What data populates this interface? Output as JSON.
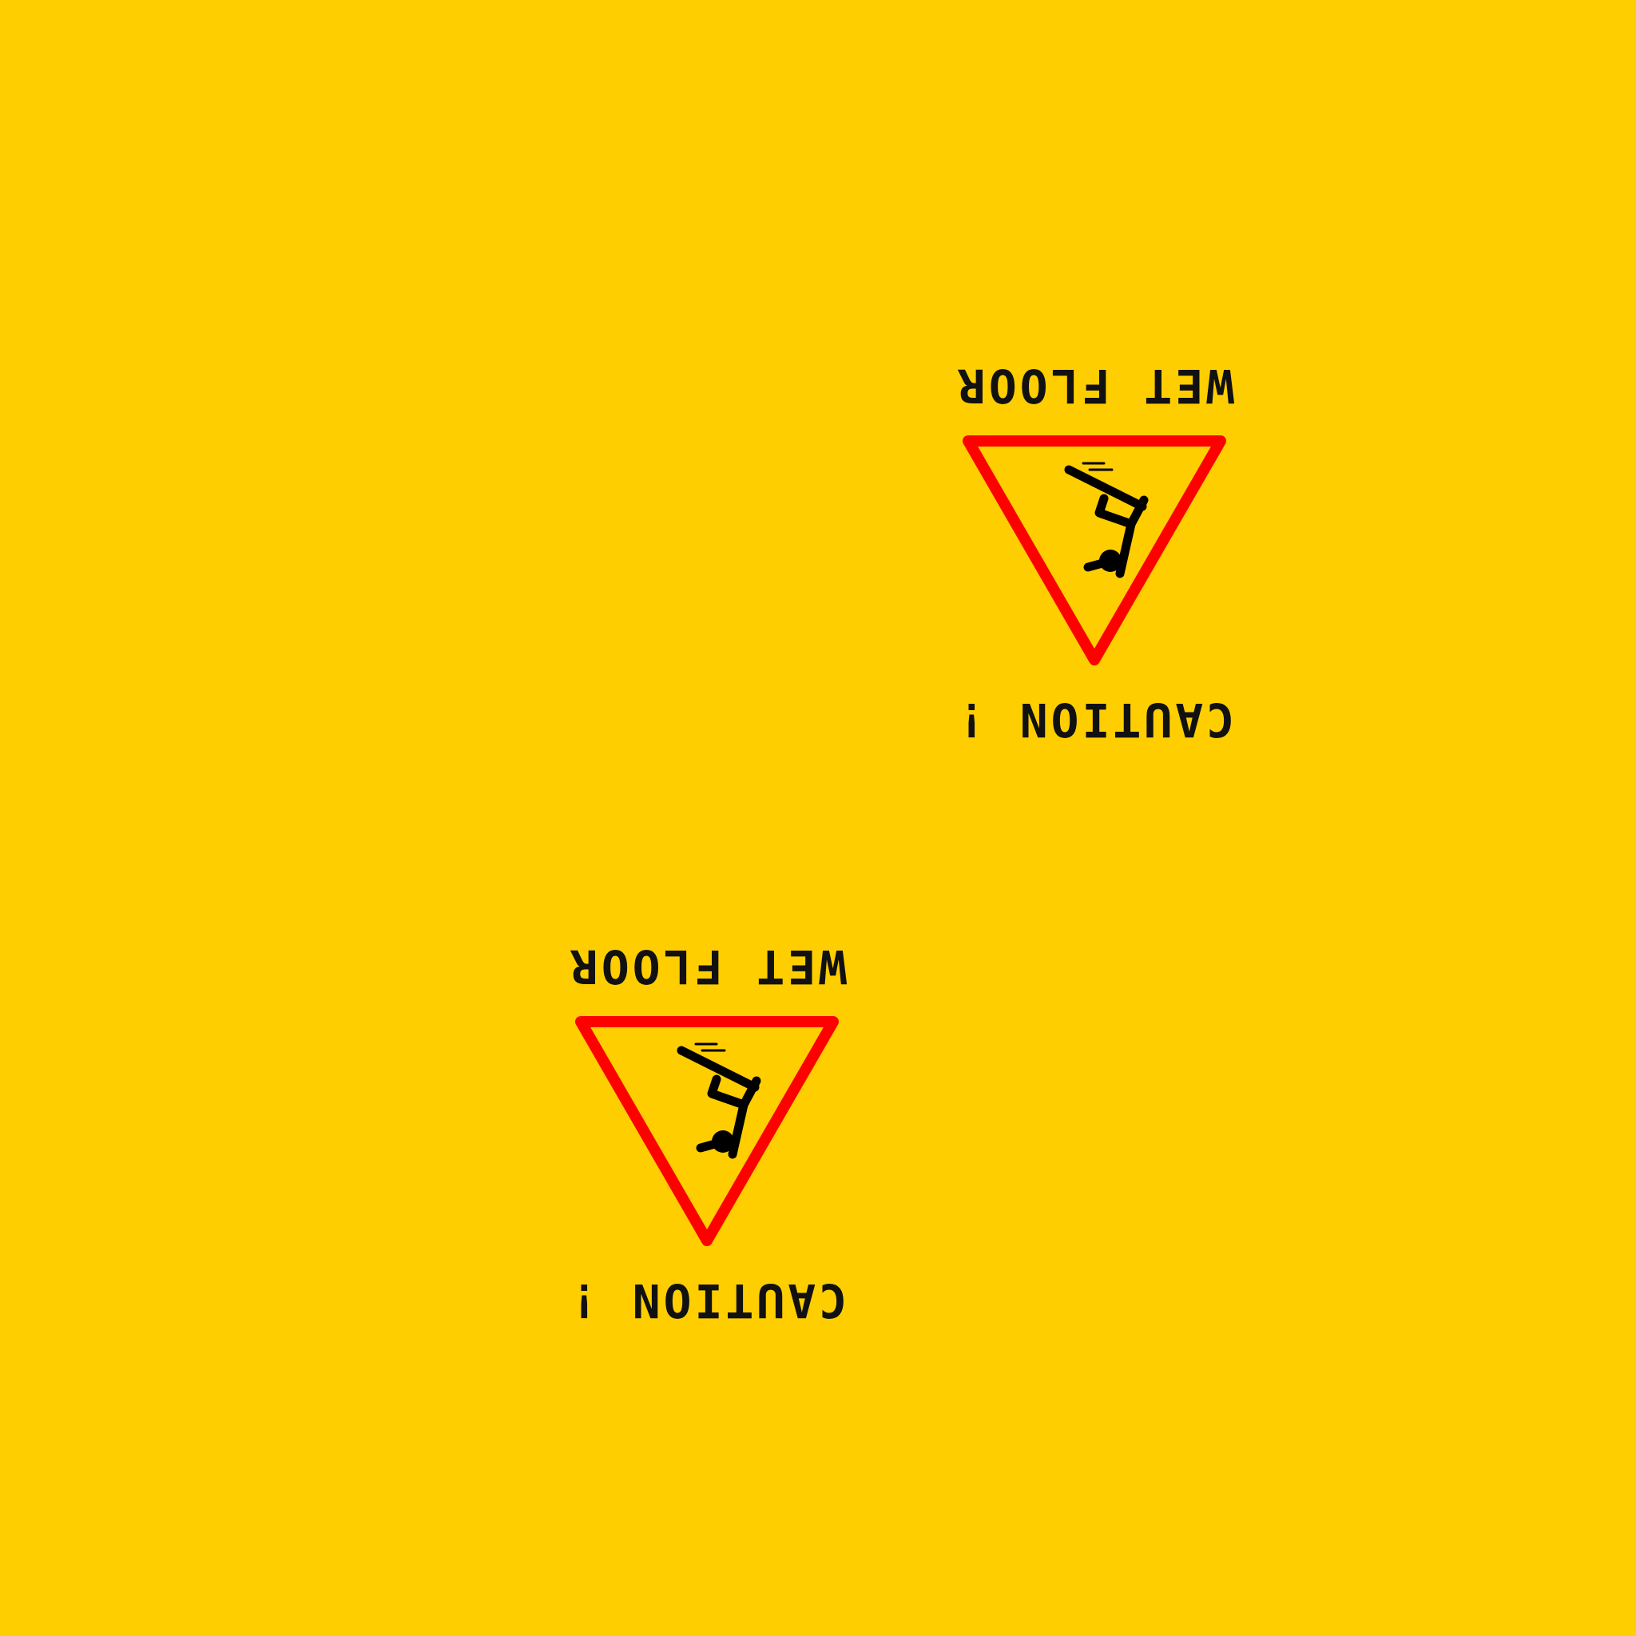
{
  "background_color": "#FFCE00",
  "triangle_stroke_color": "#FF0000",
  "text_color": "#111111",
  "signs": [
    {
      "caption_top": "CAUTION !",
      "caption_bottom": "WET FLOOR",
      "icon": "slipping-person-icon"
    },
    {
      "caption_top": "CAUTION !",
      "caption_bottom": "WET FLOOR",
      "icon": "slipping-person-icon"
    }
  ]
}
